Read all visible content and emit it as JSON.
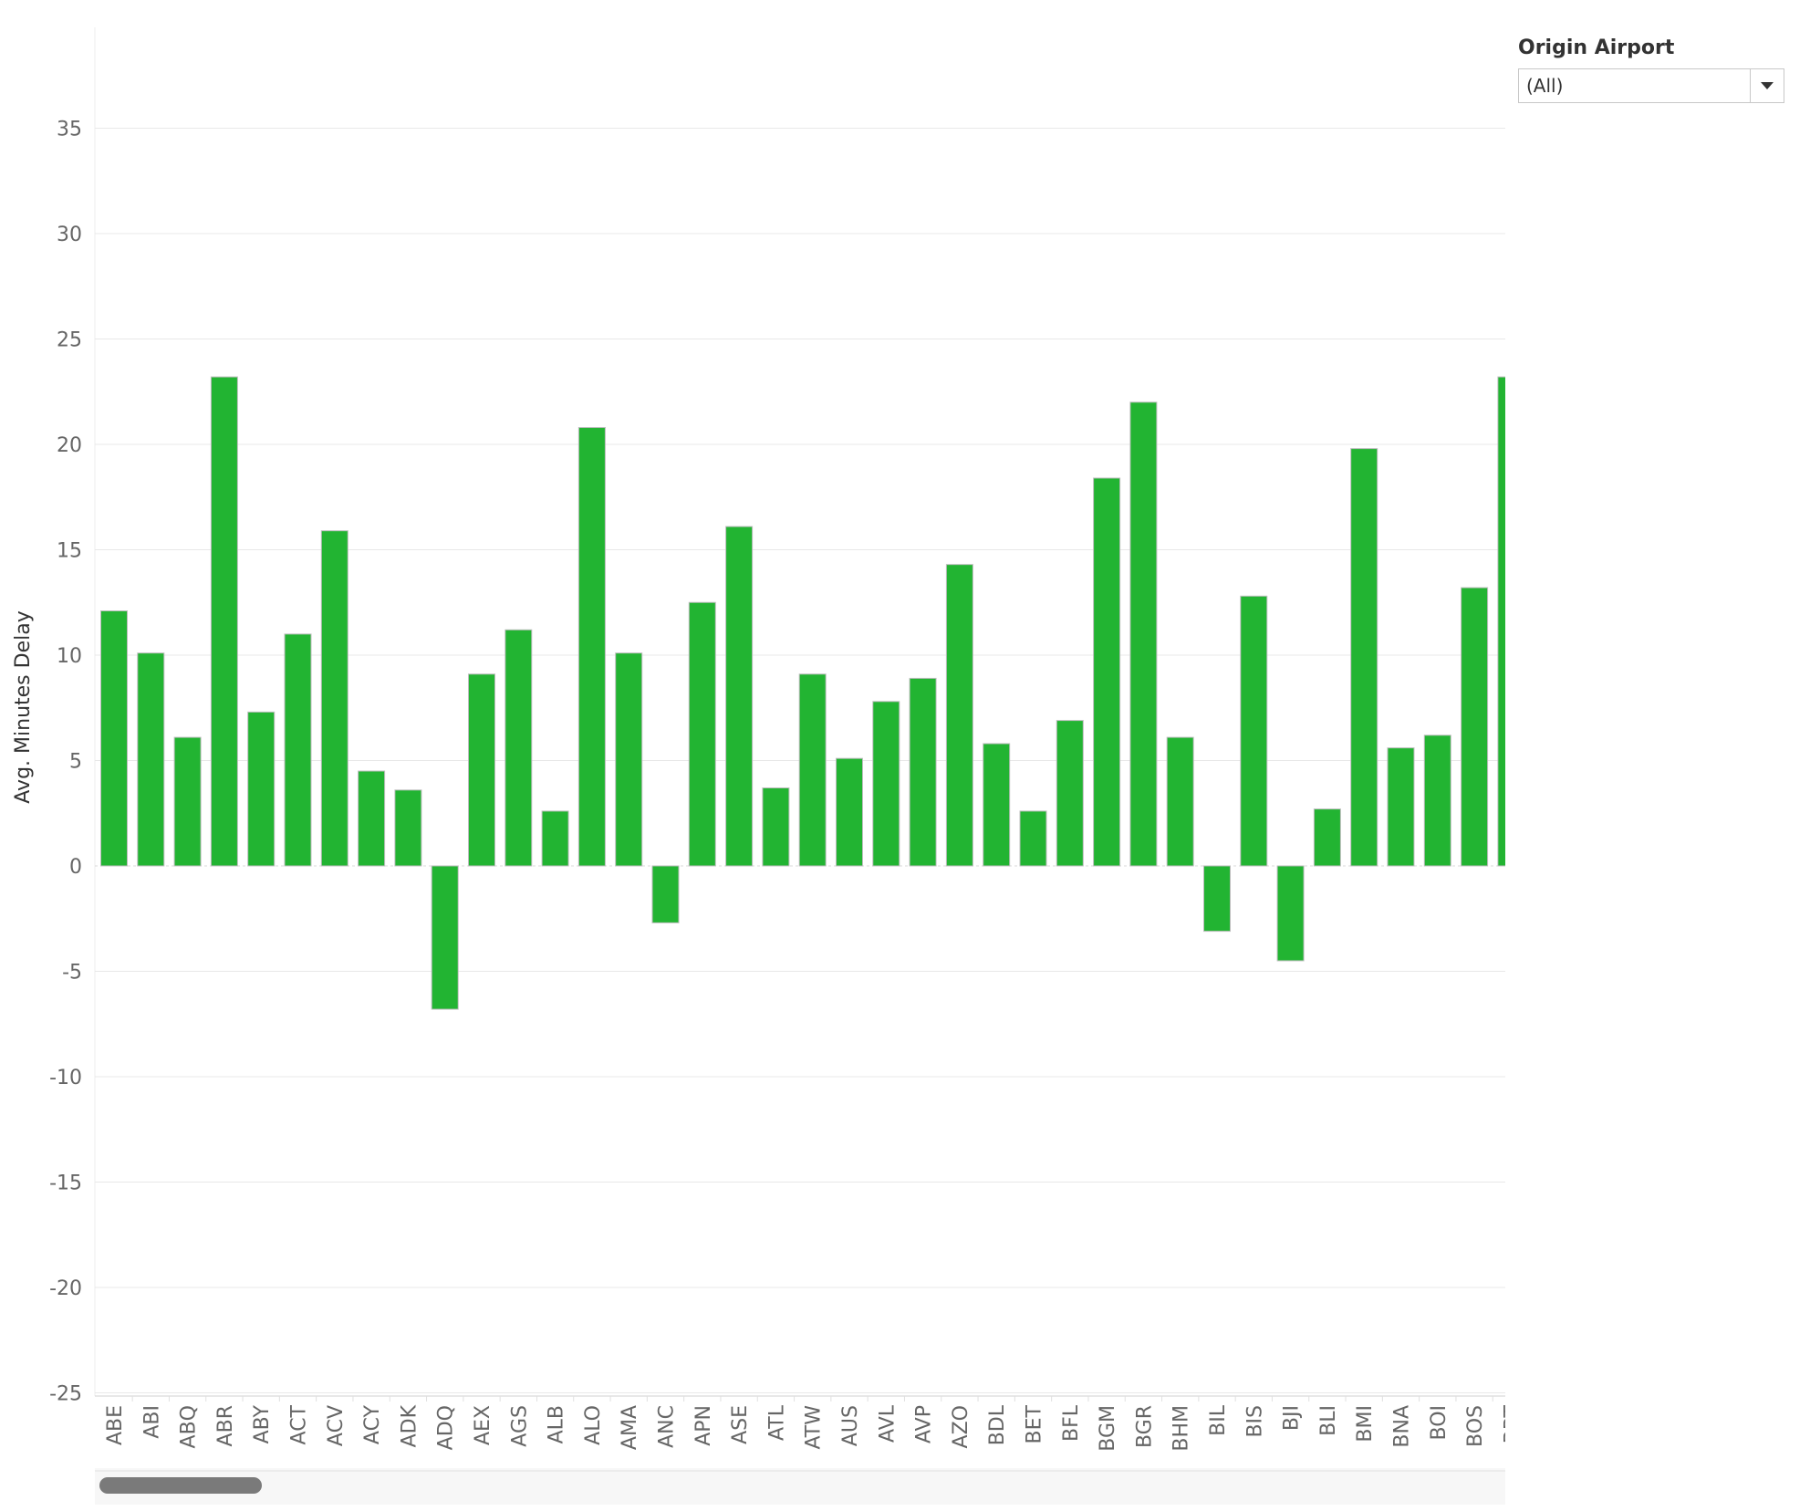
{
  "filter": {
    "title": "Origin Airport",
    "selected_value": "(All)"
  },
  "colors": {
    "bar": "#22b432",
    "bar_outline": "#bdbdbd",
    "grid": "#e8e8e8"
  },
  "chart_data": {
    "type": "bar",
    "ylabel": "Avg. Minutes Delay",
    "ylim": [
      -27,
      38
    ],
    "yticks": [
      35,
      30,
      25,
      20,
      15,
      10,
      5,
      0,
      -5,
      -10,
      -15,
      -20,
      -25
    ],
    "grid": true,
    "categories": [
      "ABE",
      "ABI",
      "ABQ",
      "ABR",
      "ABY",
      "ACT",
      "ACV",
      "ACY",
      "ADK",
      "ADQ",
      "AEX",
      "AGS",
      "ALB",
      "ALO",
      "AMA",
      "ANC",
      "APN",
      "ASE",
      "ATL",
      "ATW",
      "AUS",
      "AVL",
      "AVP",
      "AZO",
      "BDL",
      "BET",
      "BFL",
      "BGM",
      "BGR",
      "BHM",
      "BIL",
      "BIS",
      "BJI",
      "BLI",
      "BMI",
      "BNA",
      "BOI",
      "BOS",
      "BRT"
    ],
    "values": [
      12.1,
      10.1,
      6.1,
      23.2,
      7.3,
      11.0,
      15.9,
      4.5,
      3.6,
      -6.8,
      9.1,
      11.2,
      2.6,
      20.8,
      10.1,
      -2.7,
      12.5,
      16.1,
      3.7,
      9.1,
      5.1,
      7.8,
      8.9,
      14.3,
      5.8,
      2.6,
      6.9,
      18.4,
      22.0,
      6.1,
      -3.1,
      12.8,
      -4.5,
      2.7,
      19.8,
      5.6,
      6.2,
      13.2,
      23.2
    ]
  }
}
